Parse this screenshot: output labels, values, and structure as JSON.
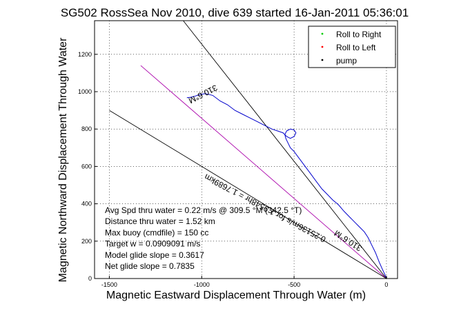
{
  "chart_data": {
    "type": "line",
    "title": "SG502 RossSea Nov 2010, dive 639 started 16-Jan-2011 05:36:01",
    "xlabel": "Magnetic Eastward Displacement Through Water (m)",
    "ylabel": "Magnetic Northward Displacement Through Water",
    "xlim": [
      -1580,
      60
    ],
    "ylim": [
      0,
      1380
    ],
    "xticks": [
      -1500,
      -1000,
      -500,
      0
    ],
    "yticks": [
      0,
      200,
      400,
      600,
      800,
      1000,
      1200
    ],
    "grid": true,
    "legend_position": "top-right",
    "legend": [
      {
        "label": "Roll to Right",
        "color": "#00cc00"
      },
      {
        "label": "Roll to Left",
        "color": "#ff0000"
      },
      {
        "label": "pump",
        "color": "#000000"
      }
    ],
    "stats": [
      "Avg Spd thru water =  0.22 m/s @ 309.5 °M (342.5 °T)",
      "Distance thru water =  1.52 km",
      "Max buoy (cmdfile) = 150 cc",
      "Target w = 0.0909091 m/s",
      "Model glide slope = 0.3617",
      "Net glide slope = 0.7835"
    ],
    "annotations": [
      {
        "text": "310.6°M",
        "x": -1000,
        "y": 1000,
        "angle": -27
      },
      {
        "text": "0.25136m/s for 1.9548hr = 1.7689km",
        "x": -650,
        "y": 390,
        "angle": 28
      },
      {
        "text": "310.6°M",
        "x": -200,
        "y": 215,
        "angle": 33
      }
    ],
    "series": [
      {
        "name": "track",
        "color": "#0000cc",
        "x": [
          0,
          -8,
          -22,
          -40,
          -60,
          -80,
          -100,
          -120,
          -150,
          -170,
          -200,
          -230,
          -260,
          -290,
          -320,
          -350,
          -380,
          -410,
          -440,
          -470,
          -500,
          -520,
          -535,
          -545,
          -550,
          -540,
          -520,
          -500,
          -490,
          -500,
          -520,
          -540,
          -555,
          -560,
          -590,
          -620,
          -660,
          -700,
          -740,
          -780,
          -820,
          -860,
          -900,
          -940,
          -980,
          -1010,
          -1040,
          -1060,
          -1080
        ],
        "y": [
          0,
          20,
          50,
          90,
          140,
          180,
          220,
          250,
          280,
          300,
          330,
          360,
          395,
          420,
          450,
          480,
          520,
          560,
          600,
          640,
          680,
          700,
          730,
          750,
          770,
          790,
          800,
          795,
          780,
          760,
          750,
          760,
          775,
          780,
          790,
          800,
          820,
          840,
          860,
          880,
          900,
          930,
          950,
          980,
          990,
          985,
          975,
          970,
          968
        ]
      },
      {
        "name": "pump",
        "color": "#000000",
        "x": [
          -3,
          0,
          2
        ],
        "y": [
          5,
          0,
          8
        ]
      }
    ],
    "reference_lines": [
      {
        "name": "heading-310.6-line",
        "color": "#000000",
        "x": [
          0,
          -1100
        ],
        "y": [
          0,
          1380
        ]
      },
      {
        "name": "model-slope-line",
        "color": "#aa00aa",
        "x": [
          0,
          -1330
        ],
        "y": [
          0,
          1140
        ]
      },
      {
        "name": "slope-line",
        "color": "#000000",
        "x": [
          0,
          -1500
        ],
        "y": [
          0,
          900
        ]
      }
    ]
  }
}
